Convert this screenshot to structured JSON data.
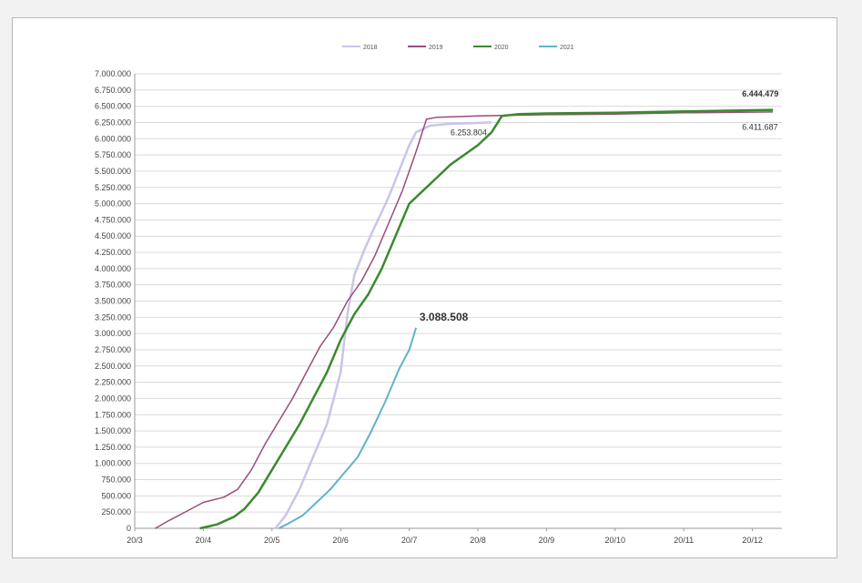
{
  "chart_data": {
    "type": "line",
    "title": "",
    "xlabel": "",
    "ylabel": "",
    "x_tick_labels": [
      "20/3",
      "20/4",
      "20/5",
      "20/6",
      "20/7",
      "20/8",
      "20/9",
      "20/10",
      "20/11",
      "20/12"
    ],
    "y_tick_labels": [
      "0",
      "250.000",
      "500.000",
      "750.000",
      "1.000.000",
      "1.250.000",
      "1.500.000",
      "1.750.000",
      "2.000.000",
      "2.250.000",
      "2.500.000",
      "2.750.000",
      "3.000.000",
      "3.250.000",
      "3.500.000",
      "3.750.000",
      "4.000.000",
      "4.250.000",
      "4.500.000",
      "4.750.000",
      "5.000.000",
      "5.250.000",
      "5.500.000",
      "5.750.000",
      "6.000.000",
      "6.250.000",
      "6.500.000",
      "6.750.000",
      "7.000.000"
    ],
    "ylim": [
      0,
      7000000
    ],
    "x_unit": "months since 20/3",
    "xlim": [
      0,
      9.3
    ],
    "grid": "horizontal",
    "legend_position": "top-center",
    "series": [
      {
        "name": "2018",
        "color": "#c9c5e8",
        "width": 2.5,
        "points": [
          [
            2.05,
            0
          ],
          [
            2.2,
            200000
          ],
          [
            2.4,
            600000
          ],
          [
            2.6,
            1100000
          ],
          [
            2.8,
            1600000
          ],
          [
            3.0,
            2400000
          ],
          [
            3.1,
            3300000
          ],
          [
            3.2,
            3900000
          ],
          [
            3.35,
            4300000
          ],
          [
            3.5,
            4650000
          ],
          [
            3.7,
            5100000
          ],
          [
            3.85,
            5500000
          ],
          [
            4.0,
            5900000
          ],
          [
            4.1,
            6100000
          ],
          [
            4.3,
            6200000
          ],
          [
            4.6,
            6230000
          ],
          [
            4.9,
            6240000
          ],
          [
            5.2,
            6253804
          ]
        ]
      },
      {
        "name": "2019",
        "color": "#9a4c7c",
        "width": 1.5,
        "points": [
          [
            0.3,
            0
          ],
          [
            0.5,
            120000
          ],
          [
            0.75,
            260000
          ],
          [
            1.0,
            400000
          ],
          [
            1.3,
            480000
          ],
          [
            1.5,
            600000
          ],
          [
            1.7,
            900000
          ],
          [
            1.9,
            1300000
          ],
          [
            2.1,
            1650000
          ],
          [
            2.3,
            2000000
          ],
          [
            2.5,
            2400000
          ],
          [
            2.7,
            2800000
          ],
          [
            2.9,
            3100000
          ],
          [
            3.1,
            3500000
          ],
          [
            3.3,
            3800000
          ],
          [
            3.5,
            4200000
          ],
          [
            3.7,
            4700000
          ],
          [
            3.9,
            5200000
          ],
          [
            4.1,
            5800000
          ],
          [
            4.25,
            6300000
          ],
          [
            4.4,
            6330000
          ],
          [
            5.0,
            6350000
          ],
          [
            6.0,
            6370000
          ],
          [
            7.0,
            6380000
          ],
          [
            8.0,
            6400000
          ],
          [
            9.3,
            6411687
          ]
        ]
      },
      {
        "name": "2020",
        "color": "#3a8a2e",
        "width": 2.5,
        "points": [
          [
            0.95,
            0
          ],
          [
            1.2,
            60000
          ],
          [
            1.45,
            180000
          ],
          [
            1.6,
            300000
          ],
          [
            1.8,
            550000
          ],
          [
            2.0,
            900000
          ],
          [
            2.2,
            1250000
          ],
          [
            2.4,
            1600000
          ],
          [
            2.6,
            2000000
          ],
          [
            2.8,
            2400000
          ],
          [
            3.0,
            2900000
          ],
          [
            3.2,
            3300000
          ],
          [
            3.4,
            3600000
          ],
          [
            3.6,
            4000000
          ],
          [
            3.8,
            4500000
          ],
          [
            4.0,
            5000000
          ],
          [
            4.2,
            5200000
          ],
          [
            4.4,
            5400000
          ],
          [
            4.6,
            5600000
          ],
          [
            4.8,
            5750000
          ],
          [
            5.0,
            5900000
          ],
          [
            5.2,
            6100000
          ],
          [
            5.35,
            6350000
          ],
          [
            5.6,
            6380000
          ],
          [
            6.0,
            6390000
          ],
          [
            7.0,
            6400000
          ],
          [
            8.0,
            6420000
          ],
          [
            9.3,
            6444479
          ]
        ]
      },
      {
        "name": "2021",
        "color": "#5fb4c7",
        "width": 2,
        "points": [
          [
            2.1,
            0
          ],
          [
            2.25,
            80000
          ],
          [
            2.45,
            200000
          ],
          [
            2.65,
            400000
          ],
          [
            2.85,
            600000
          ],
          [
            3.05,
            850000
          ],
          [
            3.25,
            1100000
          ],
          [
            3.45,
            1500000
          ],
          [
            3.65,
            1950000
          ],
          [
            3.85,
            2450000
          ],
          [
            4.0,
            2750000
          ],
          [
            4.1,
            3088508
          ]
        ]
      }
    ],
    "annotations": [
      {
        "text": "6.253.804",
        "x": 4.6,
        "y": 6050000,
        "size": 9,
        "bold": false
      },
      {
        "text": "6.444.479",
        "x": 8.85,
        "y": 6650000,
        "size": 9,
        "bold": true
      },
      {
        "text": "6.411.687",
        "x": 8.85,
        "y": 6140000,
        "size": 9,
        "bold": false
      },
      {
        "text": "3.088.508",
        "x": 4.15,
        "y": 3200000,
        "size": 12,
        "bold": true
      }
    ]
  }
}
